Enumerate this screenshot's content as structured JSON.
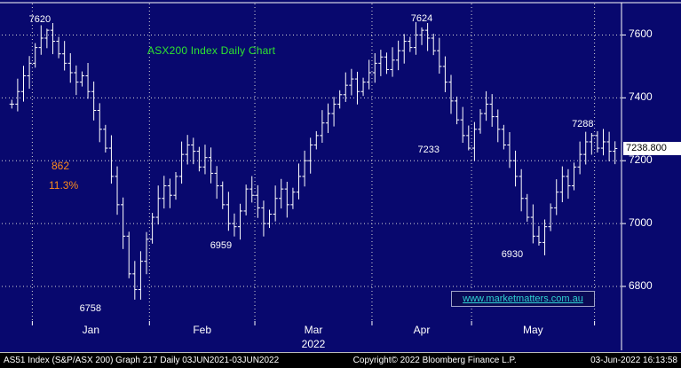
{
  "chart_data": {
    "type": "ohlc",
    "title": "ASX200 Index Daily Chart",
    "y_ticks": [
      7600,
      7400,
      7200,
      7000,
      6800
    ],
    "y_range": [
      6690,
      7700
    ],
    "year_label": "2022",
    "months": [
      "Jan",
      "Feb",
      "Mar",
      "Apr",
      "May"
    ],
    "month_boundaries": [
      4,
      24,
      42,
      62,
      79,
      100
    ],
    "closes": [
      7380,
      7420,
      7470,
      7510,
      7560,
      7590,
      7615,
      7580,
      7540,
      7510,
      7480,
      7450,
      7470,
      7420,
      7360,
      7300,
      7240,
      7150,
      7060,
      6960,
      6840,
      6790,
      6880,
      6950,
      7020,
      7080,
      7120,
      7090,
      7150,
      7220,
      7250,
      7230,
      7180,
      7210,
      7160,
      7120,
      7060,
      7000,
      6990,
      7040,
      7110,
      7090,
      7050,
      7000,
      7030,
      7080,
      7110,
      7060,
      7100,
      7150,
      7200,
      7250,
      7280,
      7320,
      7350,
      7380,
      7410,
      7440,
      7460,
      7420,
      7450,
      7480,
      7510,
      7530,
      7490,
      7520,
      7550,
      7580,
      7560,
      7600,
      7615,
      7590,
      7550,
      7500,
      7450,
      7390,
      7330,
      7280,
      7240,
      7300,
      7350,
      7380,
      7340,
      7300,
      7250,
      7200,
      7150,
      7080,
      7020,
      6960,
      6940,
      6990,
      7050,
      7100,
      7150,
      7120,
      7180,
      7220,
      7260,
      7280,
      7240,
      7260,
      7230,
      7238.8
    ],
    "high_overrides": {
      "6": 7620,
      "70": 7624,
      "99": 7288
    },
    "low_overrides": {
      "21": 6758,
      "38": 6959,
      "78": 7233,
      "90": 6930
    },
    "last_price": 7238.8,
    "last_price_label": "7238.800",
    "point_labels": [
      {
        "text": "7620",
        "index": 6,
        "side": "above",
        "dx": -8
      },
      {
        "text": "7624",
        "index": 70,
        "side": "above",
        "dx": 0
      },
      {
        "text": "6758",
        "index": 21,
        "side": "below",
        "dx": -50
      },
      {
        "text": "6959",
        "index": 38,
        "side": "below",
        "dx": -15
      },
      {
        "text": "7233",
        "index": 78,
        "side": "left",
        "dx": -45
      },
      {
        "text": "6930",
        "index": 90,
        "side": "below",
        "dx": -30
      },
      {
        "text": "7288",
        "index": 99,
        "side": "above",
        "dx": -10
      }
    ],
    "free_annotations": [
      {
        "text": "862",
        "color": "#ff8c1a"
      },
      {
        "text": "11.3%",
        "color": "#ff8c1a"
      }
    ],
    "watermark": {
      "text": "www.marketmatters.com.au",
      "color": "#2fd3d3"
    },
    "colors": {
      "background": "#08086e",
      "bars": "#ffffff",
      "grid": "#d8d8d8",
      "title": "#2fe52f"
    }
  },
  "statusbar": {
    "left": "AS51 Index (S&P/ASX 200) Graph 217   Daily 03JUN2021-03JUN2022",
    "center": "Copyright© 2022 Bloomberg Finance L.P.",
    "right": "03-Jun-2022 16:13:58"
  }
}
